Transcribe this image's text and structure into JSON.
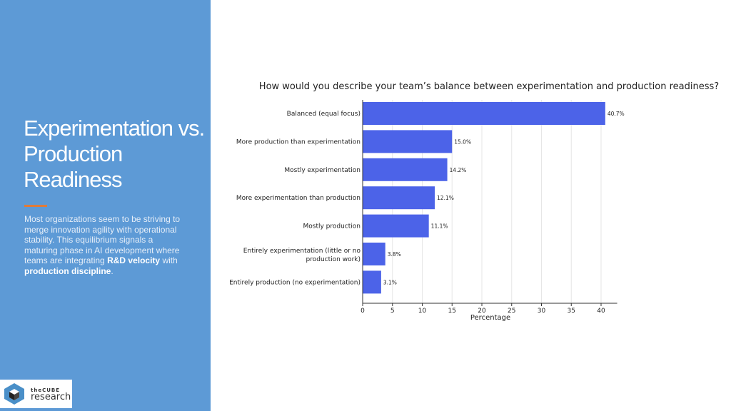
{
  "slide": {
    "title": "Experimentation vs. Production Readiness",
    "description_plain": "Most organizations seem to be striving to merge innovation agility with operational stability.  This equilibrium signals a maturing phase in AI development where teams are integrating",
    "description_bold1": "R&D velocity",
    "description_mid": "with",
    "description_bold2": "production discipline",
    "description_end": ".",
    "accent_color": "#5d9ad6",
    "rule_color": "#e07b39"
  },
  "logo": {
    "line1": "theCUBE",
    "line2": "research"
  },
  "chart_data": {
    "type": "bar",
    "orientation": "horizontal",
    "title": "How would you describe your team’s balance between experimentation and production readiness?",
    "xlabel": "Percentage",
    "ylabel": "",
    "categories": [
      "Balanced (equal focus)",
      "More production than experimentation",
      "Mostly experimentation",
      "More experimentation than production",
      "Mostly production",
      "Entirely experimentation (little or no production work)",
      "Entirely production (no experimentation)"
    ],
    "values": [
      40.7,
      15.0,
      14.2,
      12.1,
      11.1,
      3.8,
      3.1
    ],
    "data_labels": [
      "40.7%",
      "15.0%",
      "14.2%",
      "12.1%",
      "11.1%",
      "3.8%",
      "3.1%"
    ],
    "xticks": [
      0,
      5,
      10,
      15,
      20,
      25,
      30,
      35,
      40
    ],
    "xlim": [
      0,
      42.7
    ],
    "grid": true,
    "bar_color": "#4c63e8"
  }
}
